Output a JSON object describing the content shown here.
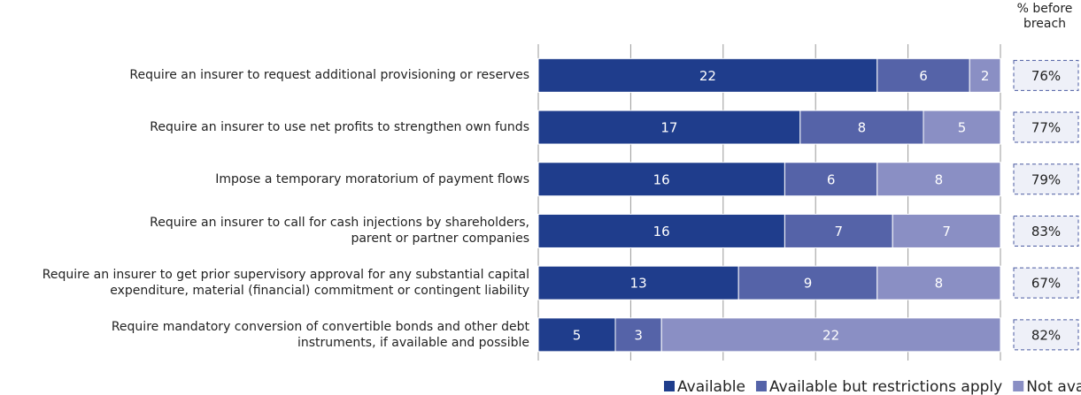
{
  "chart_data": {
    "type": "stacked-bar-horizontal",
    "categories": [
      "Require an insurer to request additional provisioning or reserves",
      "Require an insurer to use net profits to strengthen own funds",
      "Impose a temporary moratorium of payment flows",
      "Require an insurer to call for cash injections by shareholders,\nparent or partner companies",
      "Require an insurer to get prior supervisory approval for any substantial capital\nexpenditure, material (financial) commitment or contingent liability",
      "Require mandatory conversion of convertible bonds and other debt\ninstruments, if available and possible"
    ],
    "series": [
      {
        "name": "Available",
        "color": "#1f3d8c",
        "values": [
          22,
          17,
          16,
          16,
          13,
          5
        ]
      },
      {
        "name": "Available but restrictions apply",
        "color": "#5563a8",
        "values": [
          6,
          8,
          6,
          7,
          9,
          3
        ]
      },
      {
        "name": "Not available",
        "color": "#8a8fc4",
        "values": [
          2,
          5,
          8,
          7,
          8,
          22
        ]
      }
    ],
    "xlim": [
      0,
      30
    ],
    "xticks": [
      0,
      6,
      12,
      18,
      24,
      30
    ],
    "grid": true,
    "side_column": {
      "title": "% before breach",
      "values": [
        76,
        77,
        79,
        83,
        67,
        82
      ],
      "value_labels": [
        "76%",
        "77%",
        "79%",
        "83%",
        "67%",
        "82%"
      ]
    },
    "legend": "bottom"
  }
}
